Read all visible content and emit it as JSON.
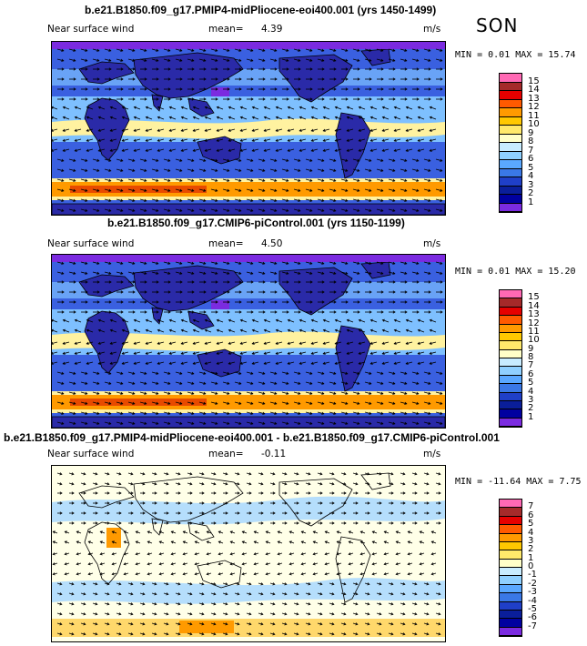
{
  "season": "SON",
  "panels": [
    {
      "id": "p1",
      "title": "b.e21.B1850.f09_g17.PMIP4-midPliocene-eoi400.001 (yrs 1450-1499)",
      "variable": "Near surface wind",
      "mean_label": "mean=",
      "mean_value": "4.39",
      "units": "m/s",
      "min_label": "MIN =",
      "min_value": "0.01",
      "max_label": "MAX =",
      "max_value": "15.74",
      "colorbar_labels": [
        "15",
        "14",
        "13",
        "12",
        "11",
        "10",
        "9",
        "8",
        "7",
        "6",
        "5",
        "4",
        "3",
        "2",
        "1"
      ],
      "colorbar_colors": [
        "#ff69b4",
        "#a52a2a",
        "#e60000",
        "#ff5a00",
        "#ff9a00",
        "#ffc800",
        "#ffe96b",
        "#ffffc8",
        "#c8ecff",
        "#8fd0ff",
        "#5aa8ff",
        "#3a78e6",
        "#1f3fc8",
        "#0a1e9a",
        "#0000a0",
        "#7b2be0"
      ]
    },
    {
      "id": "p2",
      "title": "b.e21.B1850.f09_g17.CMIP6-piControl.001 (yrs 1150-1199)",
      "variable": "Near surface wind",
      "mean_label": "mean=",
      "mean_value": "4.50",
      "units": "m/s",
      "min_label": "MIN =",
      "min_value": "0.01",
      "max_label": "MAX =",
      "max_value": "15.20",
      "colorbar_labels": [
        "15",
        "14",
        "13",
        "12",
        "11",
        "10",
        "9",
        "8",
        "7",
        "6",
        "5",
        "4",
        "3",
        "2",
        "1"
      ],
      "colorbar_colors": [
        "#ff69b4",
        "#a52a2a",
        "#e60000",
        "#ff5a00",
        "#ff9a00",
        "#ffc800",
        "#ffe96b",
        "#ffffc8",
        "#c8ecff",
        "#8fd0ff",
        "#5aa8ff",
        "#3a78e6",
        "#1f3fc8",
        "#0a1e9a",
        "#0000a0",
        "#7b2be0"
      ]
    },
    {
      "id": "p3",
      "title": "b.e21.B1850.f09_g17.PMIP4-midPliocene-eoi400.001 - b.e21.B1850.f09_g17.CMIP6-piControl.001",
      "variable": "Near surface wind",
      "mean_label": "mean=",
      "mean_value": "-0.11",
      "units": "m/s",
      "min_label": "MIN =",
      "min_value": "-11.64",
      "max_label": "MAX =",
      "max_value": "7.75",
      "colorbar_labels": [
        "7",
        "6",
        "5",
        "4",
        "3",
        "2",
        "1",
        "0",
        "-1",
        "-2",
        "-3",
        "-4",
        "-5",
        "-6",
        "-7"
      ],
      "colorbar_colors": [
        "#ff69b4",
        "#a52a2a",
        "#e60000",
        "#ff5a00",
        "#ff9a00",
        "#ffc800",
        "#ffe96b",
        "#ffffc8",
        "#c8ecff",
        "#8fd0ff",
        "#5aa8ff",
        "#3a78e6",
        "#1f3fc8",
        "#0a1e9a",
        "#0000a0",
        "#7b2be0"
      ]
    }
  ],
  "colors": {
    "land_abs": "#2a2aa8",
    "ocean_low_abs": "#3a60e0",
    "ocean_mid_abs": "#7ec0ff",
    "trade_abs": "#fff2a0",
    "southern_abs": "#ff9a00",
    "southern_core_abs": "#e84a00",
    "calm_abs": "#7b2be0",
    "diff_bg": "#ffffe8",
    "diff_neg": "#a8d8ff",
    "diff_pos": "#ffd86b",
    "diff_pos_strong": "#ff9a00"
  }
}
